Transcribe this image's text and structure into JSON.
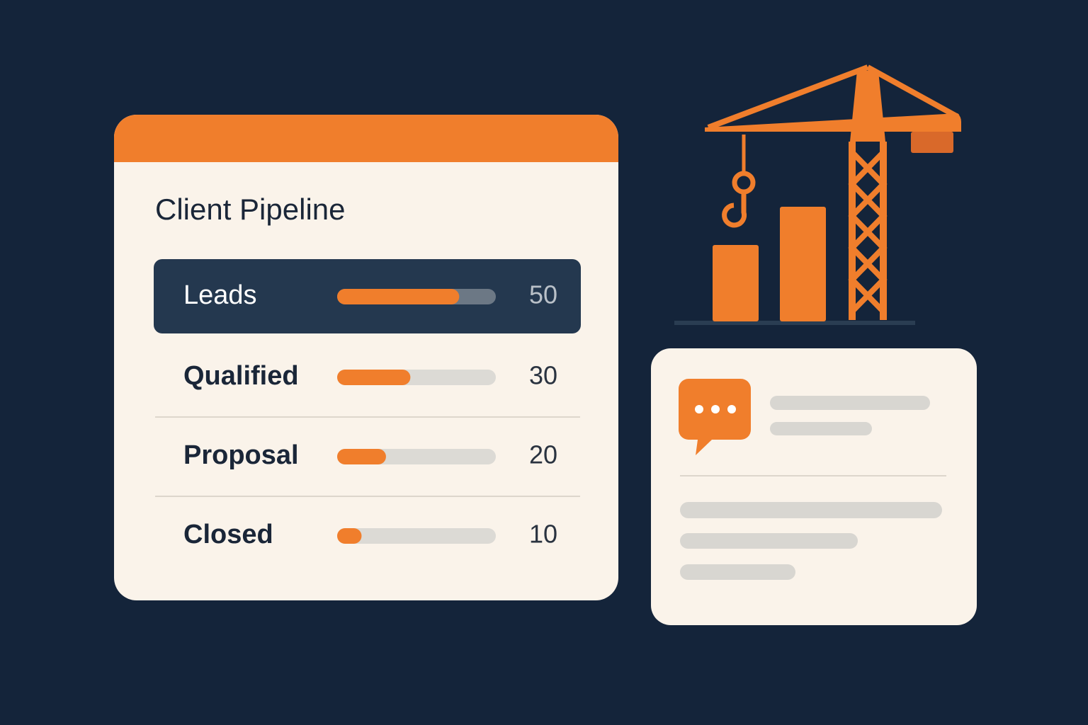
{
  "pipeline": {
    "title": "Client Pipeline",
    "rows": [
      {
        "label": "Leads",
        "value": 50
      },
      {
        "label": "Qualified",
        "value": 30
      },
      {
        "label": "Proposal",
        "value": 20
      },
      {
        "label": "Closed",
        "value": 10
      }
    ]
  }
}
